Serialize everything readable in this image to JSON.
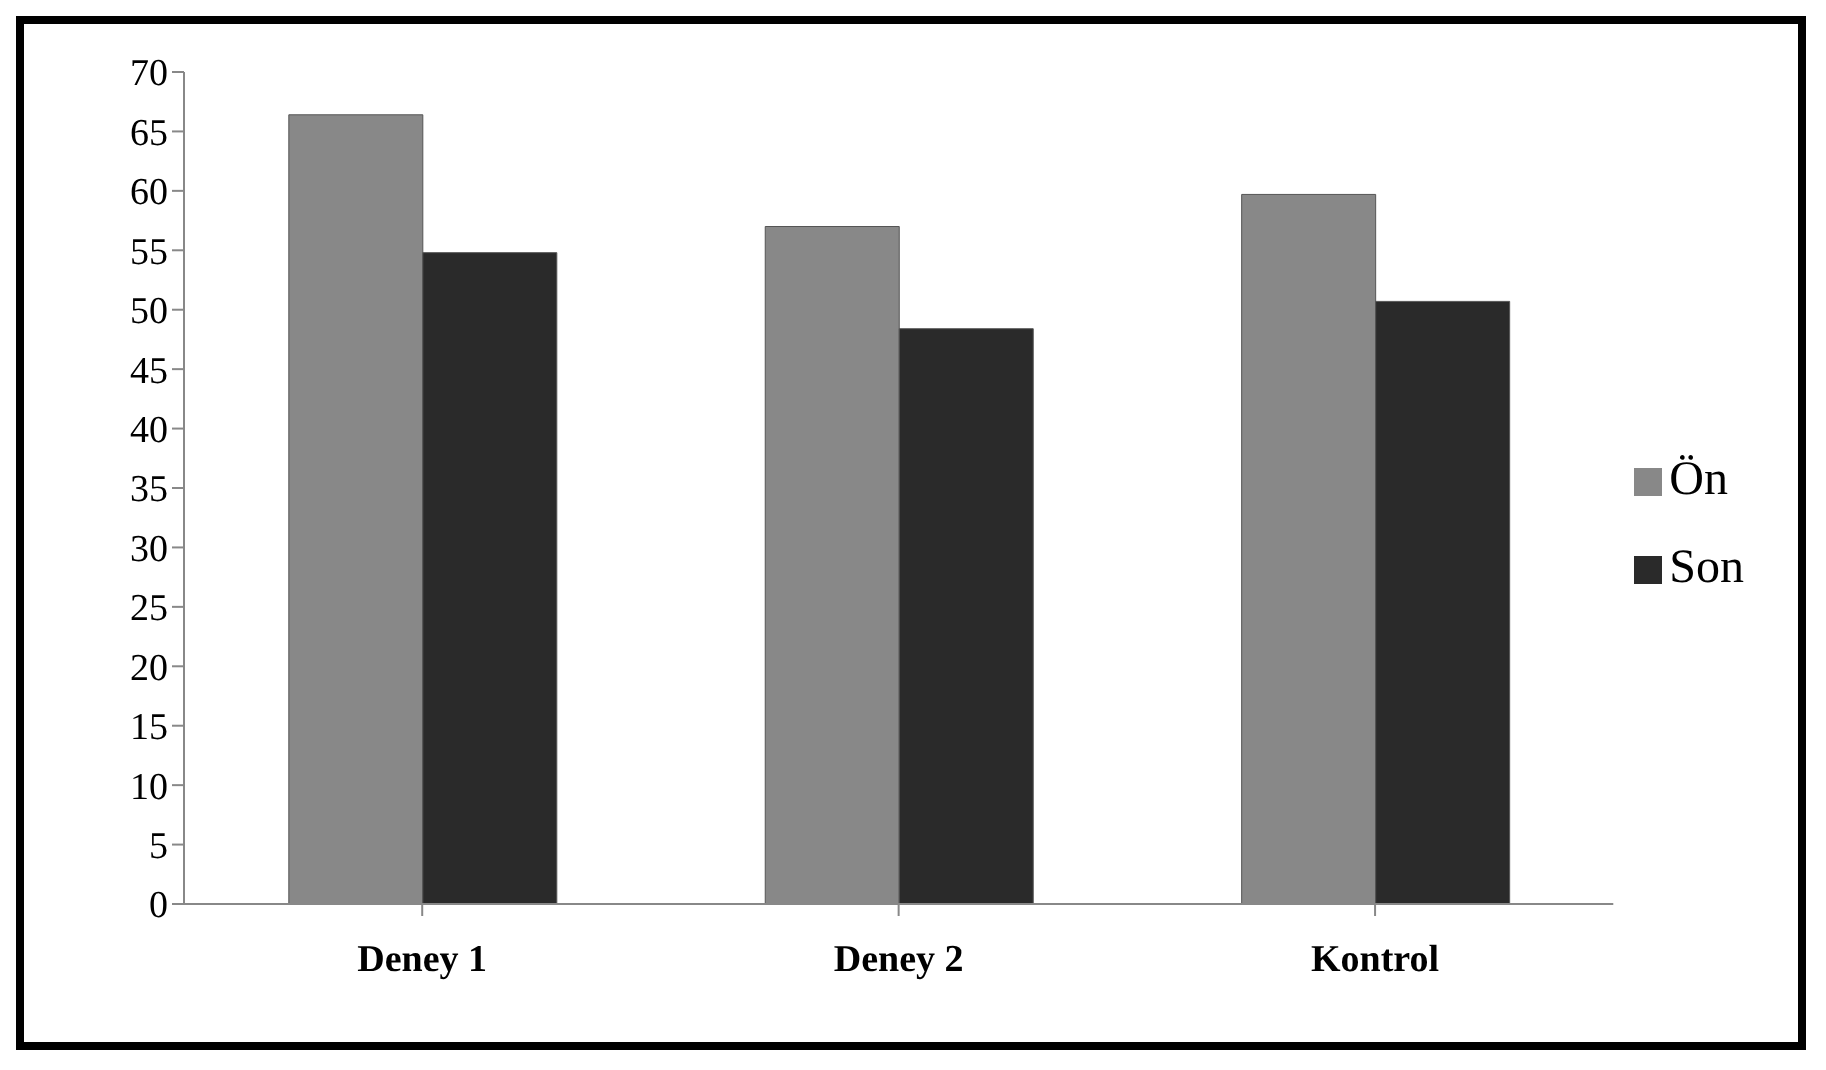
{
  "chart_data": {
    "type": "bar",
    "categories": [
      "Deney 1",
      "Deney 2",
      "Kontrol"
    ],
    "series": [
      {
        "name": "Ön",
        "color": "#888888",
        "values": [
          66.4,
          57.0,
          59.7
        ]
      },
      {
        "name": "Son",
        "color": "#2a2a2a",
        "values": [
          54.8,
          48.4,
          50.7
        ]
      }
    ],
    "ylim": [
      0,
      70
    ],
    "yticks": [
      0,
      5,
      10,
      15,
      20,
      25,
      30,
      35,
      40,
      45,
      50,
      55,
      60,
      65,
      70
    ],
    "grid": false,
    "legend": "right"
  }
}
